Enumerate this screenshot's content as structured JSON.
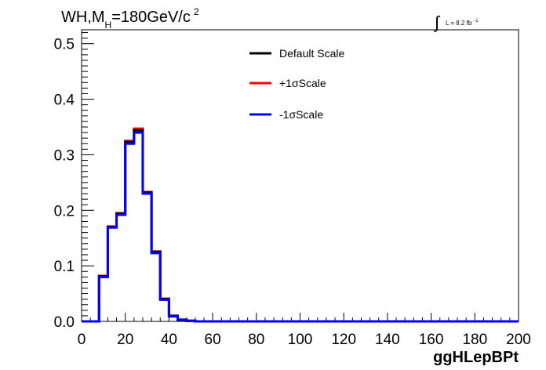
{
  "chart_data": {
    "type": "line",
    "title": {
      "prefix": "WH,M",
      "subscript": "H",
      "middle": "=180GeV/c",
      "superscript": "2"
    },
    "luminosity": {
      "integral_symbol": "∫",
      "text": "L = 8.2 fb",
      "superscript": "-1"
    },
    "xlabel": "ggHLepBPt",
    "ylabel": "",
    "xlim": [
      0,
      200
    ],
    "ylim": [
      0,
      0.525
    ],
    "x_ticks": [
      "0",
      "20",
      "40",
      "60",
      "80",
      "100",
      "120",
      "140",
      "160",
      "180",
      "200"
    ],
    "y_ticks": [
      "0.0",
      "0.1",
      "0.2",
      "0.3",
      "0.4",
      "0.5"
    ],
    "legend_position": "top-center",
    "grid": false,
    "bin_width": 4,
    "bin_edges_start": 0,
    "series": [
      {
        "name": "Default Scale",
        "color": "#000000",
        "values": [
          0,
          0,
          0.081,
          0.17,
          0.194,
          0.323,
          0.344,
          0.232,
          0.125,
          0.04,
          0.01,
          0.003,
          0.001,
          0,
          0,
          0,
          0,
          0,
          0,
          0,
          0,
          0,
          0,
          0,
          0,
          0,
          0,
          0,
          0,
          0,
          0,
          0,
          0,
          0,
          0,
          0,
          0,
          0,
          0,
          0,
          0,
          0,
          0,
          0,
          0,
          0,
          0,
          0,
          0,
          0
        ]
      },
      {
        "name": "+1σScale",
        "color": "#ff0000",
        "values": [
          0,
          0,
          0.082,
          0.171,
          0.195,
          0.325,
          0.347,
          0.233,
          0.126,
          0.041,
          0.01,
          0.003,
          0.001,
          0,
          0,
          0,
          0,
          0,
          0,
          0,
          0,
          0,
          0,
          0,
          0,
          0,
          0,
          0,
          0,
          0,
          0,
          0,
          0,
          0,
          0,
          0,
          0,
          0,
          0,
          0,
          0,
          0,
          0,
          0,
          0,
          0,
          0,
          0,
          0,
          0
        ]
      },
      {
        "name": "-1σScale",
        "color": "#0000ff",
        "values": [
          0,
          0,
          0.08,
          0.169,
          0.192,
          0.32,
          0.34,
          0.23,
          0.123,
          0.039,
          0.009,
          0.003,
          0.001,
          0,
          0,
          0,
          0,
          0,
          0,
          0,
          0,
          0,
          0,
          0,
          0,
          0,
          0,
          0,
          0,
          0,
          0,
          0,
          0,
          0,
          0,
          0,
          0,
          0,
          0,
          0,
          0,
          0,
          0,
          0,
          0,
          0,
          0,
          0,
          0,
          0
        ]
      }
    ]
  }
}
